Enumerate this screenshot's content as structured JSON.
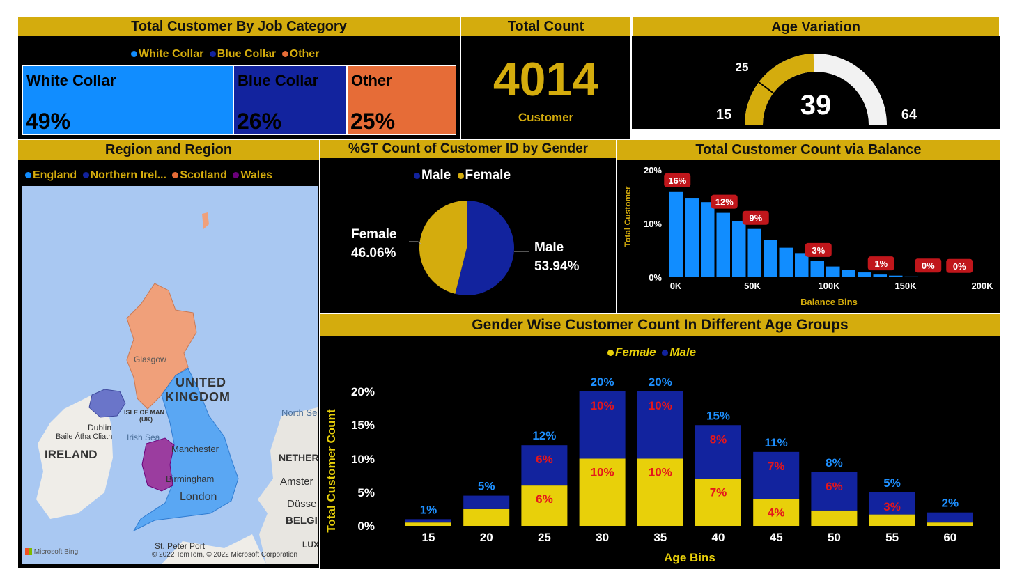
{
  "job": {
    "title": "Total Customer By Job Category",
    "legend": [
      {
        "label": "White Collar",
        "color": "#118dff"
      },
      {
        "label": "Blue Collar",
        "color": "#12239e"
      },
      {
        "label": "Other",
        "color": "#e66c37"
      }
    ],
    "tiles": [
      {
        "label": "White Collar",
        "value": "49%",
        "color": "#118dff"
      },
      {
        "label": "Blue Collar",
        "value": "26%",
        "color": "#12239e"
      },
      {
        "label": "Other",
        "value": "25%",
        "color": "#e66c37"
      }
    ]
  },
  "total": {
    "title": "Total Count",
    "value": "4014",
    "caption": "Customer"
  },
  "age": {
    "title": "Age Variation",
    "min": "15",
    "max": "64",
    "target": "25",
    "value": "39",
    "min_num": 15,
    "max_num": 64,
    "target_num": 25,
    "value_num": 39
  },
  "region": {
    "title": "Region and Region",
    "legend": [
      {
        "label": "England",
        "color": "#118dff"
      },
      {
        "label": "Northern Irel...",
        "color": "#12239e"
      },
      {
        "label": "Scotland",
        "color": "#e66c37"
      },
      {
        "label": "Wales",
        "color": "#6b007b"
      }
    ],
    "map_labels": {
      "uk1": "UNITED",
      "uk2": "KINGDOM",
      "ireland": "IRELAND",
      "glasgow": "Glasgow",
      "dublin": "Dublin",
      "baile": "Baile Átha Cliath",
      "irish_sea": "Irish Sea",
      "isle1": "ISLE OF MAN",
      "isle2": "(UK)",
      "manchester": "Manchester",
      "birmingham": "Birmingham",
      "london": "London",
      "north_sea": "North Se",
      "nether": "NETHER",
      "amster": "Amster",
      "dusse": "Düsse",
      "belgi": "BELGI",
      "lux": "LUX",
      "st_peter": "St. Peter Port",
      "copyright": "© 2022 TomTom, © 2022 Microsoft Corporation",
      "bing": "Microsoft Bing"
    }
  },
  "gender": {
    "title": "%GT Count of Customer ID by Gender",
    "legend": [
      {
        "label": "Male",
        "color": "#12239e"
      },
      {
        "label": "Female",
        "color": "#d4ac0d"
      }
    ],
    "female_label": "Female",
    "female_pct": "46.06%",
    "female_value": 46.06,
    "male_label": "Male",
    "male_pct": "53.94%",
    "male_value": 53.94
  },
  "balance": {
    "title": "Total Customer Count via Balance",
    "ylabel": "Total Customer",
    "xlabel": "Balance Bins",
    "yticks": [
      "20%",
      "10%",
      "0%"
    ],
    "xticks": [
      "0K",
      "50K",
      "100K",
      "150K",
      "200K"
    ]
  },
  "agegroups": {
    "title": "Gender Wise Customer Count In Different Age Groups",
    "legend": [
      {
        "label": "Female",
        "color": "#e8d00a"
      },
      {
        "label": "Male",
        "color": "#12239e"
      }
    ],
    "ylabel": "Total Customer Count",
    "xlabel": "Age Bins",
    "yticks": [
      "20%",
      "15%",
      "10%",
      "5%",
      "0%"
    ]
  },
  "chart_data": [
    {
      "type": "bar",
      "title": "Total Customer Count via Balance",
      "xlabel": "Balance Bins",
      "ylabel": "Total Customer",
      "x_range": [
        0,
        200000
      ],
      "ylim": [
        0,
        20
      ],
      "bin_width": 10000,
      "x": [
        0,
        10000,
        20000,
        30000,
        40000,
        50000,
        60000,
        70000,
        80000,
        90000,
        100000,
        110000,
        120000,
        130000,
        140000,
        150000,
        160000,
        170000,
        180000
      ],
      "values": [
        16,
        14.8,
        14,
        12,
        10.5,
        9,
        7,
        5.5,
        4.5,
        3,
        2,
        1.3,
        0.9,
        0.5,
        0.3,
        0.15,
        0.1,
        0.05,
        0.03
      ],
      "data_labels": [
        {
          "index": 0,
          "text": "16%"
        },
        {
          "index": 3,
          "text": "12%"
        },
        {
          "index": 5,
          "text": "9%"
        },
        {
          "index": 9,
          "text": "3%"
        },
        {
          "index": 13,
          "text": "1%"
        },
        {
          "index": 16,
          "text": "0%"
        },
        {
          "index": 18,
          "text": "0%"
        }
      ]
    },
    {
      "type": "bar",
      "stacked": true,
      "title": "Gender Wise Customer Count In Different Age Groups",
      "xlabel": "Age Bins",
      "ylabel": "Total Customer Count",
      "ylim": [
        0,
        20
      ],
      "categories": [
        "15",
        "20",
        "25",
        "30",
        "35",
        "40",
        "45",
        "50",
        "55",
        "60"
      ],
      "series": [
        {
          "name": "Female",
          "values": [
            0.5,
            2.5,
            6,
            10,
            10,
            7,
            4,
            2.3,
            1.7,
            0.5
          ],
          "labels": [
            "",
            "",
            "6%",
            "10%",
            "10%",
            "7%",
            "4%",
            "",
            "",
            ""
          ]
        },
        {
          "name": "Male",
          "values": [
            0.5,
            2,
            6,
            10,
            10,
            8,
            7,
            5.7,
            3.3,
            1.5
          ],
          "labels": [
            "",
            "",
            "6%",
            "10%",
            "10%",
            "8%",
            "7%",
            "6%",
            "3%",
            ""
          ]
        }
      ],
      "totals": [
        "1%",
        "5%",
        "12%",
        "20%",
        "20%",
        "15%",
        "11%",
        "8%",
        "5%",
        "2%"
      ]
    },
    {
      "type": "pie",
      "title": "%GT Count of Customer ID by Gender",
      "labels": [
        "Male",
        "Female"
      ],
      "values": [
        53.94,
        46.06
      ]
    }
  ]
}
